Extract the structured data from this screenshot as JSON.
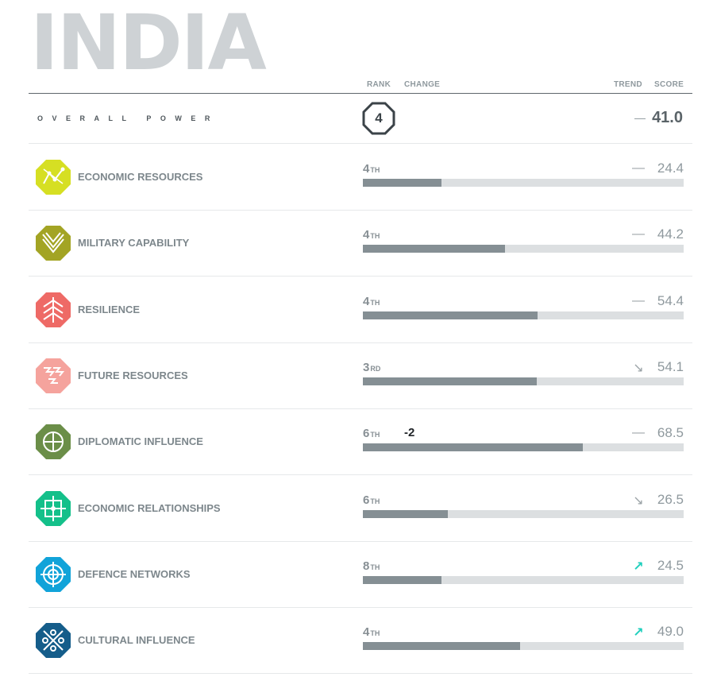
{
  "country": "INDIA",
  "columns": {
    "rank": "RANK",
    "change": "CHANGE",
    "trend": "TREND",
    "score": "SCORE"
  },
  "overall": {
    "label": "OVERALL POWER",
    "rank": "4",
    "trend": "—",
    "score": "41.0"
  },
  "measures": [
    {
      "name": "ECONOMIC RESOURCES",
      "icon": "economic-resources-icon",
      "color": "#d6df23",
      "rank": "4",
      "suffix": "TH",
      "change": "",
      "trend": "—",
      "trend_dir": "flat",
      "score": "24.4",
      "score_value": 24.4
    },
    {
      "name": "MILITARY CAPABILITY",
      "icon": "military-capability-icon",
      "color": "#a3a424",
      "rank": "4",
      "suffix": "TH",
      "change": "",
      "trend": "—",
      "trend_dir": "flat",
      "score": "44.2",
      "score_value": 44.2
    },
    {
      "name": "RESILIENCE",
      "icon": "resilience-icon",
      "color": "#ee6a66",
      "rank": "4",
      "suffix": "TH",
      "change": "",
      "trend": "—",
      "trend_dir": "flat",
      "score": "54.4",
      "score_value": 54.4
    },
    {
      "name": "FUTURE RESOURCES",
      "icon": "future-resources-icon",
      "color": "#f5a39d",
      "rank": "3",
      "suffix": "RD",
      "change": "",
      "trend": "↘",
      "trend_dir": "down",
      "score": "54.1",
      "score_value": 54.1
    },
    {
      "name": "DIPLOMATIC INFLUENCE",
      "icon": "diplomatic-influence-icon",
      "color": "#6b8e48",
      "rank": "6",
      "suffix": "TH",
      "change": "-2",
      "trend": "—",
      "trend_dir": "flat",
      "score": "68.5",
      "score_value": 68.5
    },
    {
      "name": "ECONOMIC RELATIONSHIPS",
      "icon": "economic-relationships-icon",
      "color": "#14c08a",
      "rank": "6",
      "suffix": "TH",
      "change": "",
      "trend": "↘",
      "trend_dir": "down",
      "score": "26.5",
      "score_value": 26.5
    },
    {
      "name": "DEFENCE NETWORKS",
      "icon": "defence-networks-icon",
      "color": "#11a3d9",
      "rank": "8",
      "suffix": "TH",
      "change": "",
      "trend": "↗",
      "trend_dir": "up",
      "score": "24.5",
      "score_value": 24.5
    },
    {
      "name": "CULTURAL INFLUENCE",
      "icon": "cultural-influence-icon",
      "color": "#155d8a",
      "rank": "4",
      "suffix": "TH",
      "change": "",
      "trend": "↗",
      "trend_dir": "up",
      "score": "49.0",
      "score_value": 49.0
    }
  ]
}
